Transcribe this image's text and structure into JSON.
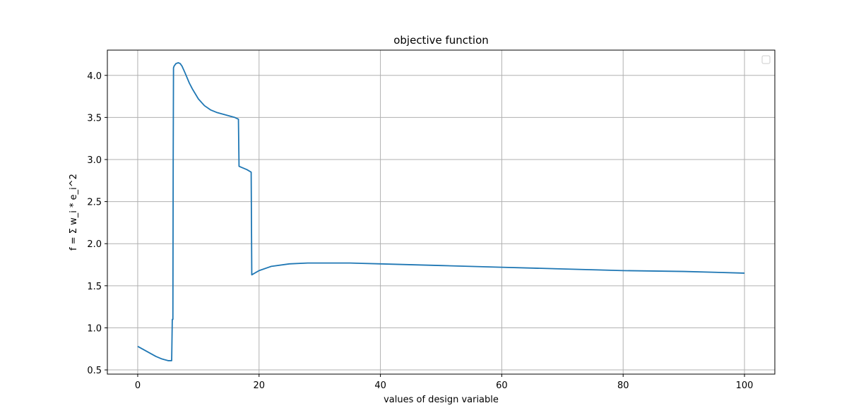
{
  "chart_data": {
    "type": "line",
    "title": "objective function",
    "xlabel": "values of design variable",
    "ylabel": "f = Σ w_i * e_i^2",
    "xlim": [
      -5,
      105
    ],
    "ylim": [
      0.45,
      4.3
    ],
    "xticks": [
      0,
      20,
      40,
      60,
      80,
      100
    ],
    "yticks": [
      0.5,
      1.0,
      1.5,
      2.0,
      2.5,
      3.0,
      3.5,
      4.0
    ],
    "xtick_labels": [
      "0",
      "20",
      "40",
      "60",
      "80",
      "100"
    ],
    "ytick_labels": [
      "0.5",
      "1.0",
      "1.5",
      "2.0",
      "2.5",
      "3.0",
      "3.5",
      "4.0"
    ],
    "grid": true,
    "legend": {
      "placement": "upper right",
      "entries": []
    },
    "colors": {
      "series": "#1f77b4",
      "grid": "#b0b0b0",
      "frame": "#000000"
    },
    "series": [
      {
        "x": [
          0,
          1,
          2,
          3,
          4,
          5,
          5.6,
          5.7,
          5.8,
          5.85,
          5.9,
          6.0,
          6.3,
          6.7,
          7.0,
          7.3,
          7.8,
          8.5,
          9.0,
          10,
          11,
          12,
          13,
          14,
          15,
          16,
          16.6,
          16.7,
          17,
          18,
          18.7,
          18.8,
          20,
          22,
          25,
          28,
          30,
          32,
          35,
          40,
          50,
          60,
          70,
          80,
          90,
          100
        ],
        "y": [
          0.78,
          0.74,
          0.7,
          0.66,
          0.63,
          0.61,
          0.61,
          1.1,
          1.1,
          3.0,
          4.09,
          4.11,
          4.14,
          4.15,
          4.14,
          4.11,
          4.03,
          3.91,
          3.84,
          3.72,
          3.64,
          3.59,
          3.56,
          3.54,
          3.52,
          3.5,
          3.48,
          2.92,
          2.91,
          2.88,
          2.85,
          1.63,
          1.68,
          1.73,
          1.76,
          1.77,
          1.77,
          1.77,
          1.77,
          1.76,
          1.74,
          1.72,
          1.7,
          1.68,
          1.67,
          1.65
        ]
      }
    ]
  }
}
